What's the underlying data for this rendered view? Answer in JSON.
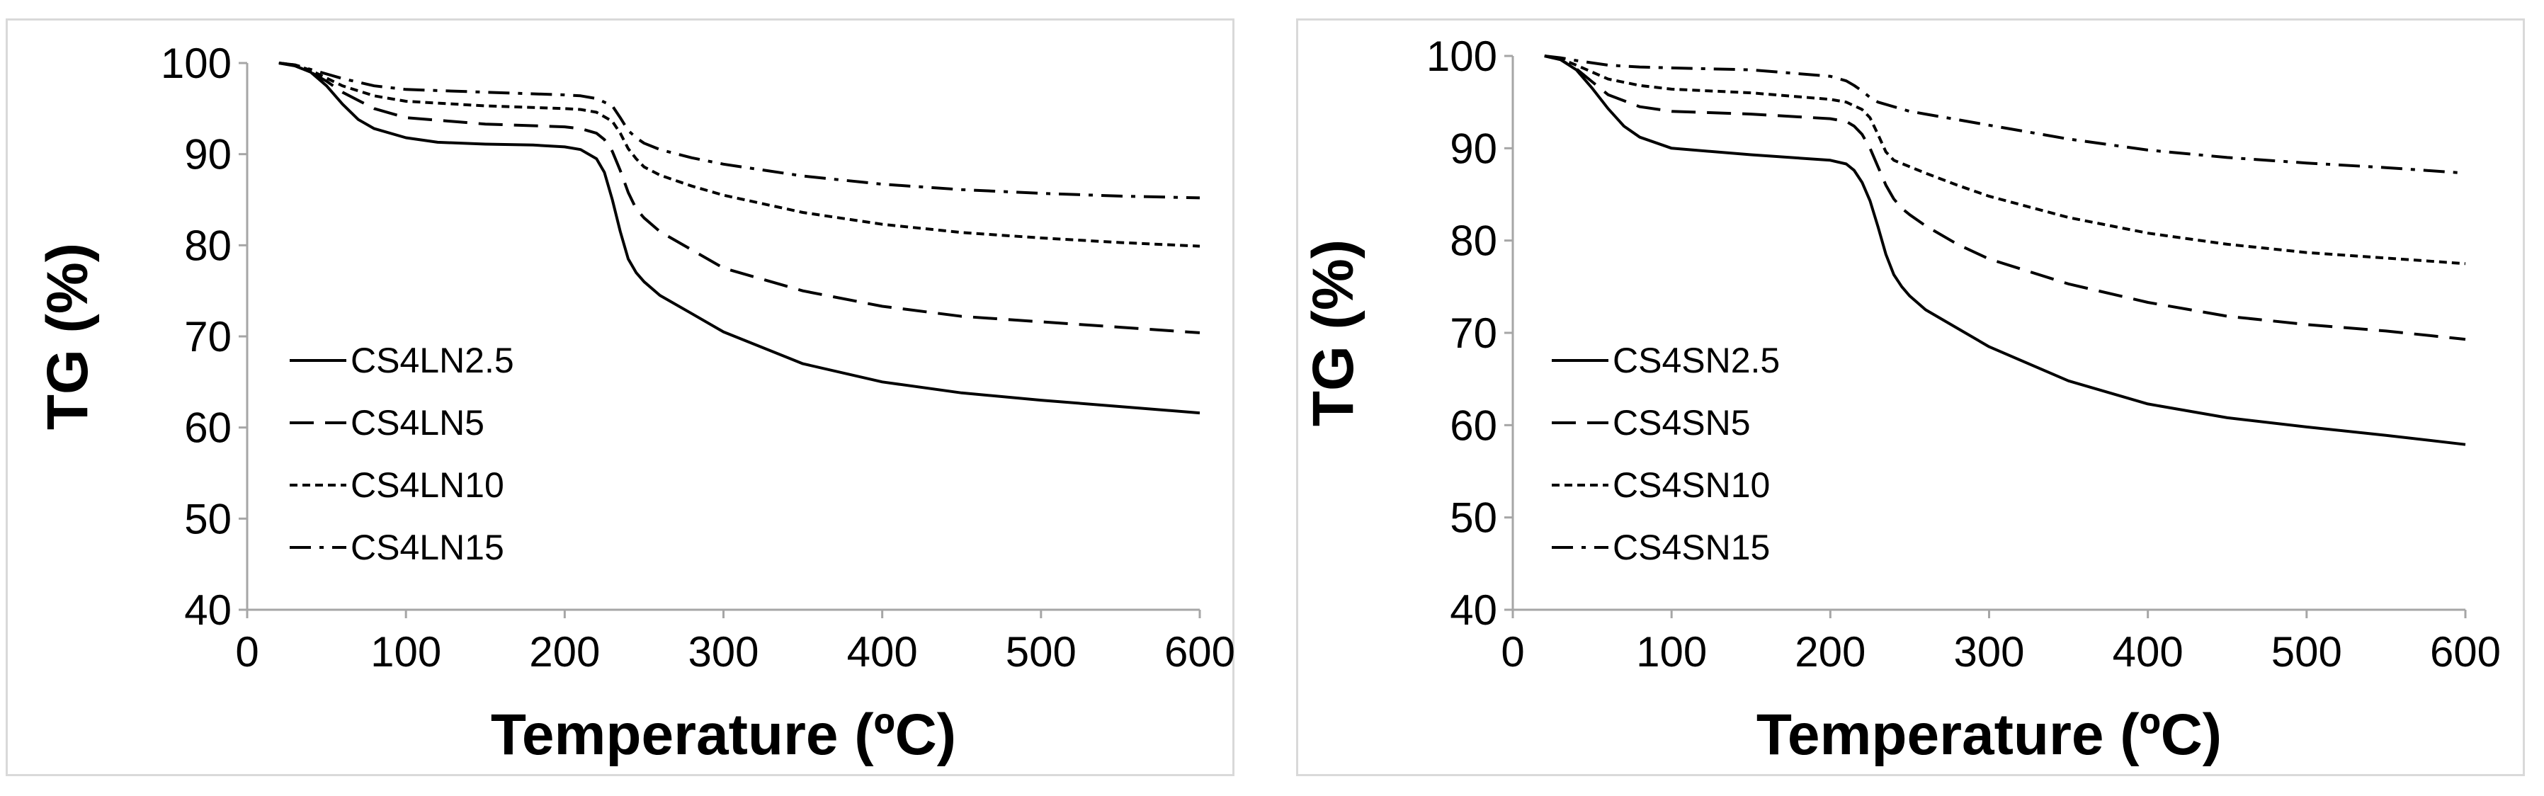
{
  "chart_data": [
    {
      "type": "line",
      "title": "",
      "xlabel": "Temperature (ºC)",
      "ylabel": "TG (%)",
      "xlim": [
        0,
        600
      ],
      "ylim": [
        40,
        100
      ],
      "xticks": [
        0,
        100,
        200,
        300,
        400,
        500,
        600
      ],
      "yticks": [
        40,
        50,
        60,
        70,
        80,
        90,
        100
      ],
      "grid": false,
      "legend_position": "middle-left",
      "series": [
        {
          "name": "CS4LN2.5",
          "dash": "solid",
          "x": [
            20,
            30,
            40,
            50,
            60,
            70,
            80,
            100,
            120,
            150,
            180,
            200,
            210,
            220,
            225,
            230,
            235,
            240,
            245,
            250,
            260,
            280,
            300,
            350,
            400,
            450,
            500,
            550,
            600
          ],
          "y": [
            100,
            99.7,
            99,
            97.5,
            95.5,
            93.8,
            92.8,
            91.8,
            91.3,
            91.1,
            91,
            90.8,
            90.5,
            89.5,
            88,
            85,
            81.5,
            78.5,
            77,
            76,
            74.5,
            72.5,
            70.5,
            67,
            65,
            63.8,
            63,
            62.3,
            61.6
          ]
        },
        {
          "name": "CS4LN5",
          "dash": "long",
          "x": [
            20,
            30,
            40,
            50,
            60,
            80,
            100,
            150,
            200,
            210,
            220,
            225,
            230,
            235,
            240,
            245,
            250,
            260,
            280,
            300,
            350,
            400,
            450,
            500,
            550,
            600
          ],
          "y": [
            100,
            99.7,
            99,
            98,
            96.8,
            95,
            94,
            93.3,
            93,
            92.8,
            92.3,
            91.6,
            90.3,
            88.2,
            85.8,
            84,
            83,
            81.5,
            79.5,
            77.5,
            75,
            73.3,
            72.2,
            71.6,
            71,
            70.4
          ]
        },
        {
          "name": "CS4LN10",
          "dash": "short",
          "x": [
            20,
            30,
            40,
            60,
            80,
            100,
            150,
            200,
            210,
            220,
            230,
            235,
            240,
            245,
            250,
            260,
            280,
            300,
            350,
            400,
            450,
            500,
            550,
            600
          ],
          "y": [
            100,
            99.8,
            99.2,
            97.5,
            96.4,
            95.8,
            95.3,
            95,
            94.9,
            94.6,
            93.6,
            92.3,
            90.6,
            89.5,
            88.6,
            87.7,
            86.5,
            85.5,
            83.6,
            82.3,
            81.4,
            80.8,
            80.3,
            79.9
          ]
        },
        {
          "name": "CS4LN15",
          "dash": "dashdot",
          "x": [
            20,
            30,
            40,
            60,
            80,
            100,
            150,
            200,
            210,
            220,
            230,
            235,
            240,
            245,
            250,
            260,
            280,
            300,
            350,
            400,
            450,
            500,
            550,
            600
          ],
          "y": [
            100,
            99.8,
            99.3,
            98.3,
            97.5,
            97.1,
            96.8,
            96.5,
            96.4,
            96.1,
            95.3,
            94,
            92.6,
            91.8,
            91.2,
            90.5,
            89.6,
            88.9,
            87.6,
            86.7,
            86.1,
            85.7,
            85.4,
            85.2
          ]
        }
      ]
    },
    {
      "type": "line",
      "title": "",
      "xlabel": "Temperature (ºC)",
      "ylabel": "TG (%)",
      "xlim": [
        0,
        600
      ],
      "ylim": [
        40,
        100
      ],
      "xticks": [
        0,
        100,
        200,
        300,
        400,
        500,
        600
      ],
      "yticks": [
        40,
        50,
        60,
        70,
        80,
        90,
        100
      ],
      "grid": false,
      "legend_position": "middle-left",
      "series": [
        {
          "name": "CS4SN2.5",
          "dash": "solid",
          "x": [
            20,
            30,
            40,
            50,
            60,
            70,
            80,
            100,
            150,
            200,
            210,
            215,
            220,
            225,
            230,
            235,
            240,
            245,
            250,
            260,
            280,
            300,
            350,
            400,
            450,
            500,
            550,
            600
          ],
          "y": [
            100,
            99.6,
            98.5,
            96.5,
            94.3,
            92.4,
            91.2,
            90,
            89.3,
            88.7,
            88.3,
            87.6,
            86.3,
            84.3,
            81.5,
            78.5,
            76.3,
            75,
            74,
            72.5,
            70.5,
            68.5,
            64.8,
            62.3,
            60.8,
            59.8,
            58.9,
            57.9
          ]
        },
        {
          "name": "CS4SN5",
          "dash": "long",
          "x": [
            20,
            30,
            40,
            50,
            60,
            80,
            100,
            150,
            200,
            210,
            215,
            220,
            225,
            230,
            235,
            240,
            245,
            250,
            260,
            280,
            300,
            350,
            400,
            450,
            500,
            550,
            600
          ],
          "y": [
            100,
            99.6,
            98.6,
            97.2,
            95.8,
            94.5,
            94,
            93.7,
            93.2,
            92.9,
            92.4,
            91.5,
            90,
            88,
            86,
            84.5,
            83.5,
            82.8,
            81.6,
            79.6,
            78,
            75.3,
            73.3,
            71.8,
            70.9,
            70.2,
            69.3
          ]
        },
        {
          "name": "CS4SN10",
          "dash": "short",
          "x": [
            20,
            30,
            40,
            60,
            80,
            100,
            150,
            200,
            210,
            220,
            225,
            230,
            235,
            240,
            250,
            260,
            280,
            300,
            350,
            400,
            450,
            500,
            550,
            600
          ],
          "y": [
            100,
            99.7,
            99,
            97.5,
            96.8,
            96.4,
            96,
            95.3,
            95,
            94.2,
            93.3,
            91.5,
            89.6,
            88.7,
            88,
            87.3,
            86,
            84.8,
            82.5,
            80.8,
            79.6,
            78.7,
            78.1,
            77.5
          ]
        },
        {
          "name": "CS4SN15",
          "dash": "dashdot",
          "x": [
            20,
            30,
            40,
            60,
            80,
            100,
            150,
            200,
            210,
            215,
            220,
            225,
            230,
            240,
            250,
            260,
            280,
            300,
            350,
            400,
            450,
            500,
            550,
            600
          ],
          "y": [
            100,
            99.8,
            99.5,
            99,
            98.8,
            98.7,
            98.5,
            97.8,
            97.3,
            96.8,
            96.2,
            95.5,
            95,
            94.5,
            94,
            93.7,
            93.1,
            92.5,
            91,
            89.8,
            89,
            88.4,
            87.9,
            87.3
          ]
        }
      ]
    }
  ]
}
